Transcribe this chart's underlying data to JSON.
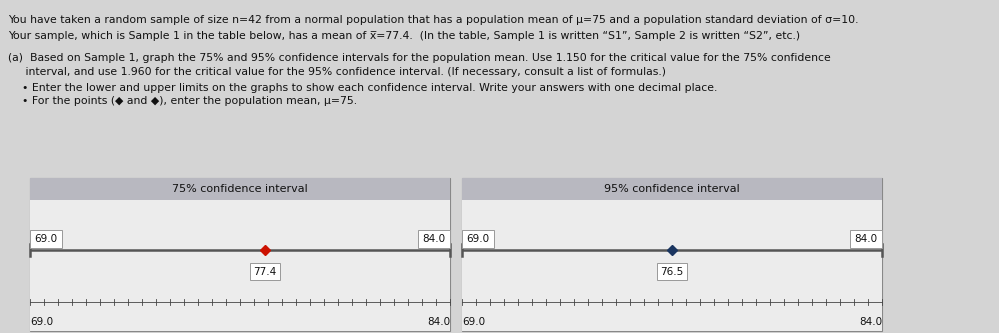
{
  "title_75": "75% confidence interval",
  "title_95": "95% confidence interval",
  "xmin": 69.0,
  "xmax": 84.0,
  "ci75_lower": 69.0,
  "ci75_upper": 84.0,
  "ci75_point": 77.4,
  "ci75_point_label": "77.4",
  "ci75_point_color": "#cc1100",
  "ci95_lower": 69.0,
  "ci95_upper": 84.0,
  "ci95_point": 76.5,
  "ci95_point_label": "76.5",
  "ci95_point_color": "#1a3560",
  "line_color": "#555555",
  "panel_bg": "#d8d8d8",
  "panel_inner_bg": "#ececec",
  "header_bg": "#b8b8c0",
  "fig_bg": "#d0d0d0",
  "text_color": "#111111",
  "box_color": "#ffffff",
  "box_edge_color": "#999999",
  "tick_count": 30,
  "text_line1": "You have taken a random sample of size n=42 from a normal population that has a population mean of μ=75 and a population standard deviation of σ=10.",
  "text_line2": "Your sample, which is Sample 1 in the table below, has a mean of x̅=77.4.  (In the table, Sample 1 is written “S1”, Sample 2 is written “S2”, etc.)",
  "text_line3a": "(a)  Based on Sample 1, graph the 75% and 95% confidence intervals for the population mean. Use 1.150 for the critical value for the 75% confidence",
  "text_line3b": "     interval, and use 1.960 for the critical value for the 95% confidence interval. (If necessary, consult a list of formulas.)",
  "bullet1": "Enter the lower and upper limits on the graphs to show each confidence interval. Write your answers with one decimal place.",
  "bullet2": "For the points (◆ and ◆), enter the population mean, μ=75."
}
